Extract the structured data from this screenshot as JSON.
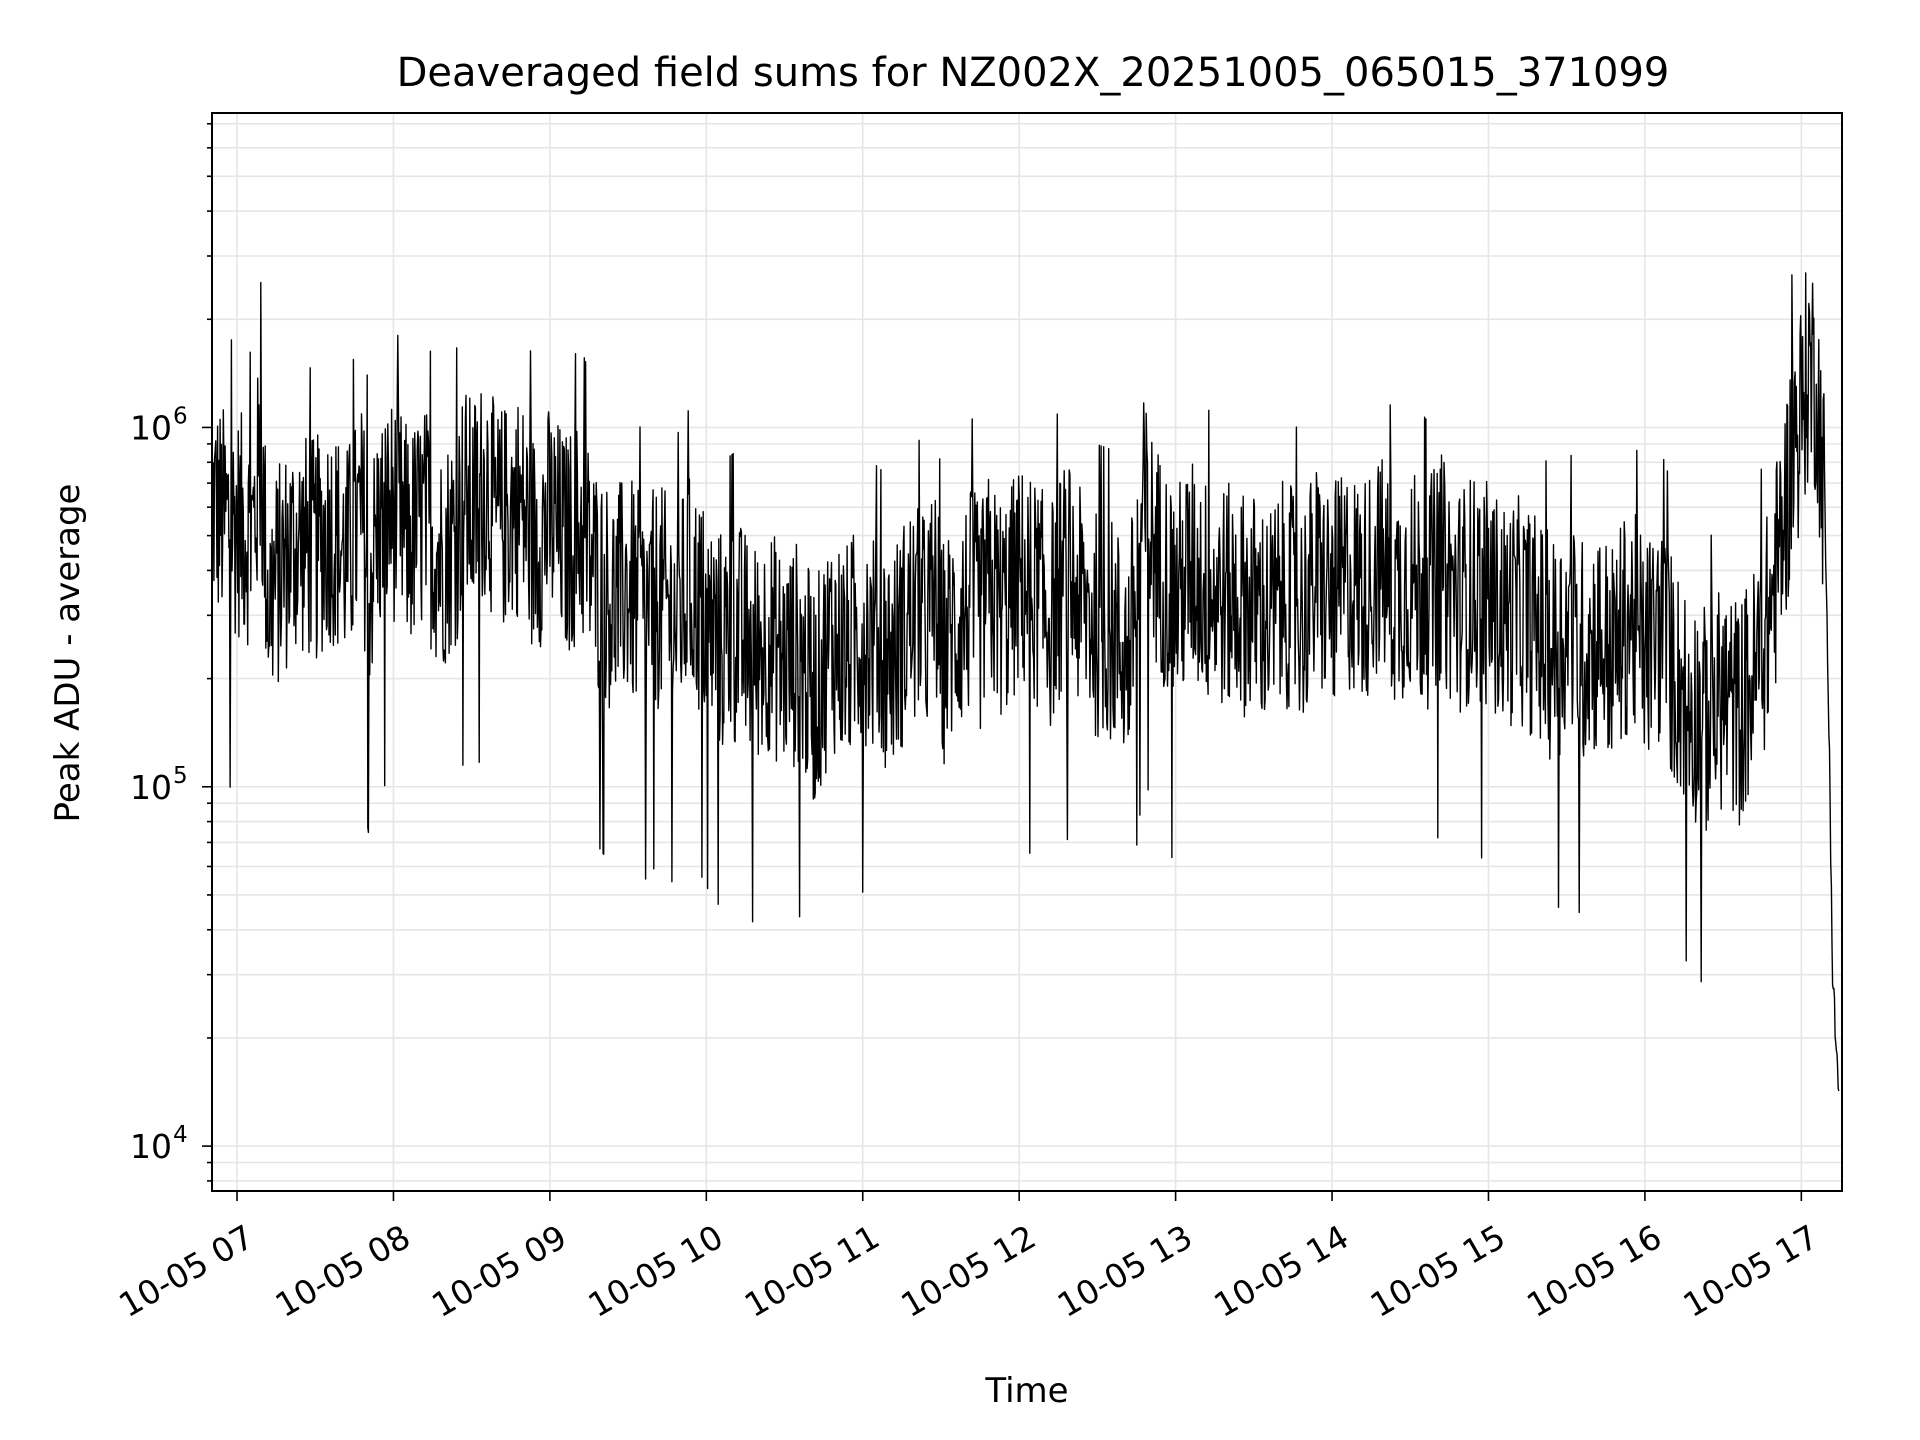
{
  "chart_data": {
    "type": "line",
    "title": "Deaveraged field sums for NZ002X_20251005_065015_371099",
    "xlabel": "Time",
    "ylabel": "Peak ADU - average",
    "yscale": "log",
    "xlim": [
      "2025-10-05 06:50:15",
      "2025-10-05 17:15:00"
    ],
    "ylim": [
      7500,
      7500000
    ],
    "grid": true,
    "grid_minor": true,
    "x_tick_labels": [
      "10-05 07",
      "10-05 08",
      "10-05 09",
      "10-05 10",
      "10-05 11",
      "10-05 12",
      "10-05 13",
      "10-05 14",
      "10-05 15",
      "10-05 16",
      "10-05 17"
    ],
    "x_tick_hours": [
      7,
      8,
      9,
      10,
      11,
      12,
      13,
      14,
      15,
      16,
      17
    ],
    "y_tick_labels": [
      {
        "base": "10",
        "exp": "4",
        "value": 10000
      },
      {
        "base": "10",
        "exp": "5",
        "value": 100000
      },
      {
        "base": "10",
        "exp": "6",
        "value": 1000000
      }
    ],
    "series": [
      {
        "color": "#000000",
        "x_hours": [
          6.84,
          6.9,
          7.0,
          7.1,
          7.15,
          7.2,
          7.3,
          7.38,
          7.5,
          7.6,
          7.7,
          7.8,
          7.85,
          7.9,
          8.0,
          8.1,
          8.2,
          8.3,
          8.4,
          8.45,
          8.5,
          8.6,
          8.65,
          8.7,
          8.8,
          8.9,
          9.0,
          9.1,
          9.2,
          9.3,
          9.4,
          9.5,
          9.6,
          9.7,
          9.8,
          9.9,
          10.0,
          10.1,
          10.2,
          10.3,
          10.4,
          10.5,
          10.6,
          10.62,
          10.7,
          10.8,
          10.9,
          11.0,
          11.1,
          11.2,
          11.3,
          11.4,
          11.47,
          11.5,
          11.6,
          11.7,
          11.75,
          11.8,
          11.9,
          12.0,
          12.1,
          12.2,
          12.3,
          12.38,
          12.5,
          12.6,
          12.7,
          12.8,
          12.85,
          12.9,
          13.0,
          13.1,
          13.2,
          13.3,
          13.4,
          13.5,
          13.6,
          13.7,
          13.8,
          13.9,
          14.0,
          14.1,
          14.2,
          14.3,
          14.4,
          14.5,
          14.6,
          14.7,
          14.72,
          14.8,
          14.9,
          15.0,
          15.1,
          15.2,
          15.3,
          15.4,
          15.5,
          15.6,
          15.7,
          15.8,
          15.9,
          16.0,
          16.1,
          16.2,
          16.3,
          16.4,
          16.5,
          16.6,
          16.7,
          16.8,
          16.9,
          16.95,
          17.0,
          17.05,
          17.1,
          17.15,
          17.18,
          17.2,
          17.22,
          17.24
        ],
        "values": [
          620000,
          560000,
          540000,
          500000,
          820000,
          330000,
          420000,
          480000,
          450000,
          520000,
          430000,
          560000,
          380000,
          520000,
          600000,
          480000,
          560000,
          430000,
          510000,
          650000,
          580000,
          720000,
          540000,
          560000,
          620000,
          480000,
          560000,
          470000,
          520000,
          380000,
          330000,
          360000,
          300000,
          340000,
          290000,
          360000,
          290000,
          250000,
          270000,
          230000,
          260000,
          220000,
          240000,
          210000,
          180000,
          260000,
          230000,
          280000,
          240000,
          230000,
          300000,
          280000,
          340000,
          230000,
          280000,
          330000,
          290000,
          360000,
          310000,
          380000,
          350000,
          300000,
          400000,
          330000,
          280000,
          270000,
          230000,
          600000,
          480000,
          420000,
          330000,
          400000,
          350000,
          340000,
          330000,
          320000,
          290000,
          350000,
          300000,
          380000,
          330000,
          380000,
          350000,
          420000,
          340000,
          380000,
          330000,
          420000,
          380000,
          330000,
          360000,
          340000,
          300000,
          310000,
          280000,
          240000,
          270000,
          240000,
          260000,
          230000,
          300000,
          240000,
          270000,
          200000,
          170000,
          150000,
          180000,
          160000,
          200000,
          300000,
          600000,
          900000,
          1100000,
          1500000,
          1300000,
          600000,
          120000,
          30000,
          20000,
          14000
        ]
      }
    ]
  }
}
